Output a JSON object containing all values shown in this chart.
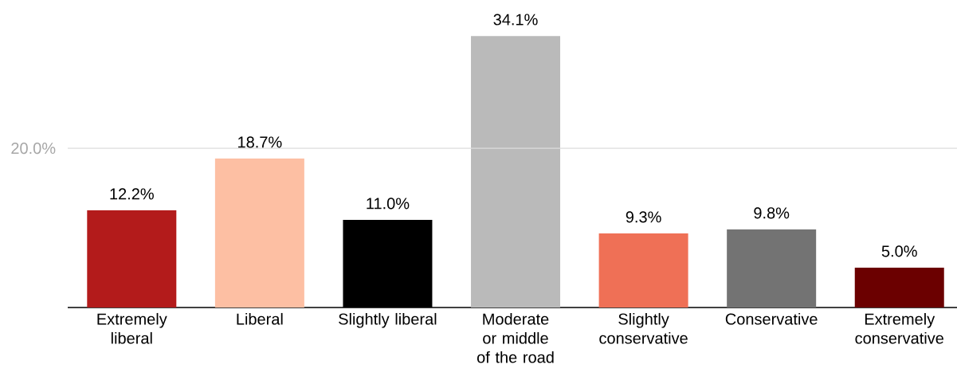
{
  "chart_data": {
    "type": "bar",
    "categories": [
      "Extremely liberal",
      "Liberal",
      "Slightly liberal",
      "Moderate or middle of the road",
      "Slightly conservative",
      "Conservative",
      "Extremely conservative"
    ],
    "values": [
      12.2,
      18.7,
      11.0,
      34.1,
      9.3,
      9.8,
      5.0
    ],
    "value_labels": [
      "12.2%",
      "18.7%",
      "11.0%",
      "34.1%",
      "9.3%",
      "9.8%",
      "5.0%"
    ],
    "colors": [
      "#b31b1b",
      "#fdbfa3",
      "#000000",
      "#bababa",
      "#ef7056",
      "#737373",
      "#6b0000"
    ],
    "ref_lines": [
      {
        "axis": "y",
        "value": 20,
        "label": "20.0%",
        "color": "#dddddd"
      }
    ]
  }
}
